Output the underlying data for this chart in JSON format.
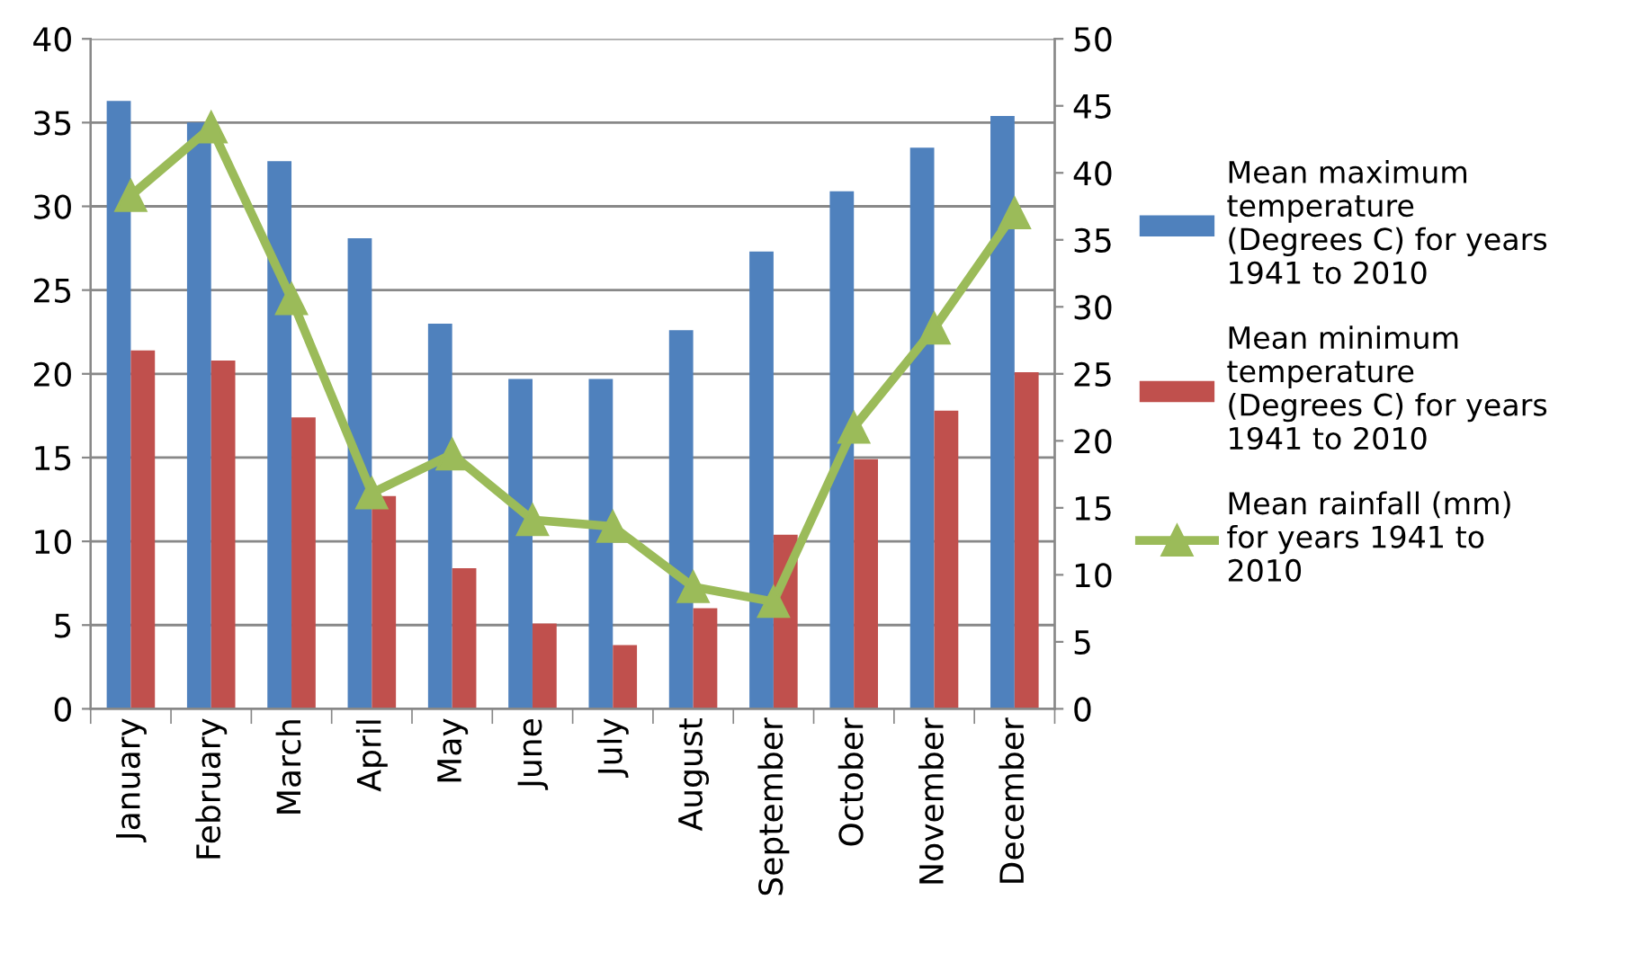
{
  "chart_data": {
    "type": "bar",
    "categories": [
      "January",
      "February",
      "March",
      "April",
      "May",
      "June",
      "July",
      "August",
      "September",
      "October",
      "November",
      "December"
    ],
    "series": [
      {
        "name": "Mean maximum temperature (Degrees C) for years 1941 to 2010",
        "color": "#4f81bd",
        "values": [
          36.3,
          35.0,
          32.7,
          28.1,
          23.0,
          19.7,
          19.7,
          22.6,
          27.3,
          30.9,
          33.5,
          35.4
        ]
      },
      {
        "name": "Mean minimum temperature (Degrees C) for years 1941 to 2010",
        "color": "#c0504d",
        "values": [
          21.4,
          20.8,
          17.4,
          12.7,
          8.4,
          5.1,
          3.8,
          6.0,
          10.4,
          14.9,
          17.8,
          20.1
        ]
      },
      {
        "name": "Mean rainfall (mm)  for years 1941 to 2010",
        "color": "#9bbb59",
        "type": "line",
        "axis": "y2",
        "marker": "triangle",
        "values": [
          38.3,
          43.4,
          30.6,
          16.1,
          19.0,
          14.1,
          13.6,
          9.1,
          8.0,
          21.0,
          28.4,
          37.0
        ]
      }
    ],
    "ylim": [
      0,
      40
    ],
    "yticks": [
      0,
      5,
      10,
      15,
      20,
      25,
      30,
      35,
      40
    ],
    "y2lim": [
      0,
      50
    ],
    "y2ticks": [
      0,
      5,
      10,
      15,
      20,
      25,
      30,
      35,
      40,
      45,
      50
    ],
    "grid": "y",
    "legend": "right"
  }
}
